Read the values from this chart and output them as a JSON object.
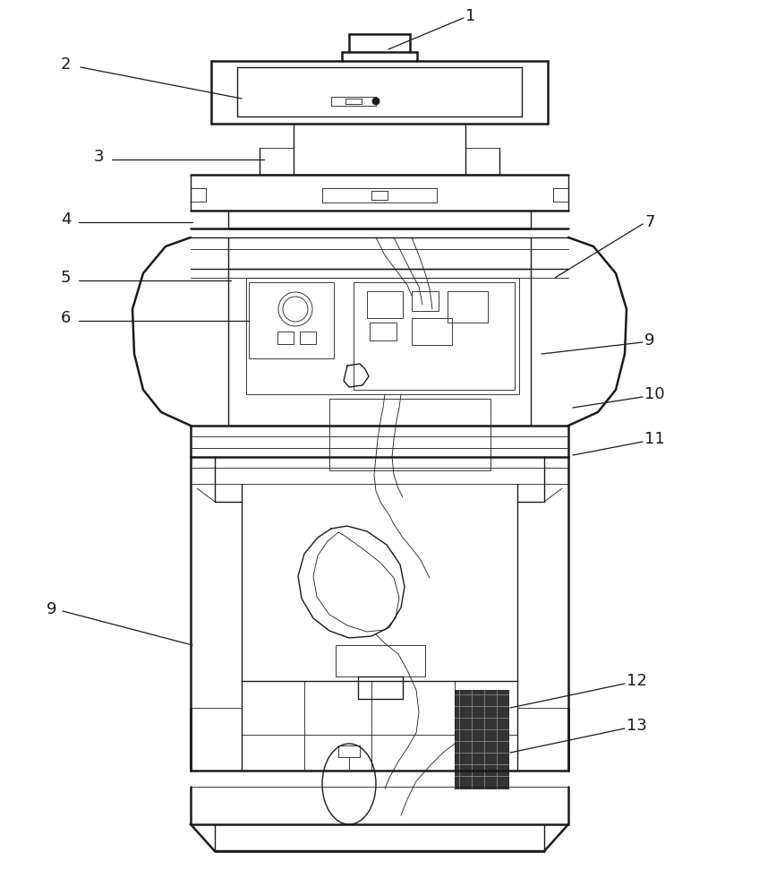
{
  "bg_color": "#ffffff",
  "line_color": "#1a1a1a",
  "lw": 1.0,
  "lw_thick": 1.8,
  "lw_thin": 0.6,
  "figsize": [
    8.48,
    10.0
  ],
  "dpi": 100
}
